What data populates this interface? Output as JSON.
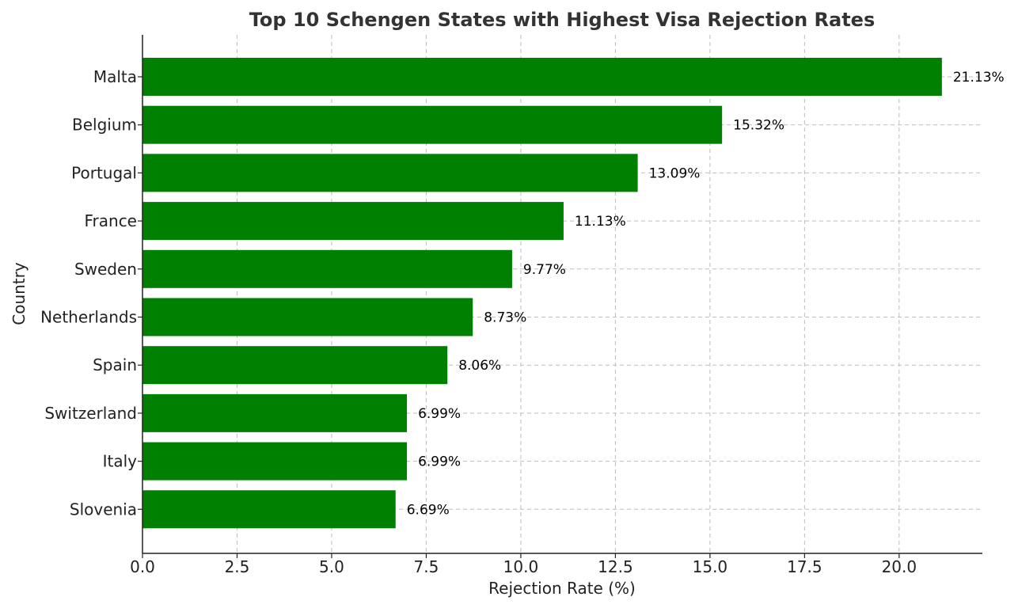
{
  "chart_data": {
    "type": "bar",
    "orientation": "horizontal",
    "title": "Top 10 Schengen States with Highest Visa Rejection Rates",
    "xlabel": "Rejection Rate (%)",
    "ylabel": "Country",
    "categories": [
      "Malta",
      "Belgium",
      "Portugal",
      "France",
      "Sweden",
      "Netherlands",
      "Spain",
      "Switzerland",
      "Italy",
      "Slovenia"
    ],
    "values": [
      21.13,
      15.32,
      13.09,
      11.13,
      9.77,
      8.73,
      8.06,
      6.99,
      6.99,
      6.69
    ],
    "data_labels": [
      "21.13%",
      "15.32%",
      "13.09%",
      "11.13%",
      "9.77%",
      "8.73%",
      "8.06%",
      "6.99%",
      "6.99%",
      "6.69%"
    ],
    "xticks": [
      0.0,
      2.5,
      5.0,
      7.5,
      10.0,
      12.5,
      15.0,
      17.5,
      20.0
    ],
    "xtick_labels": [
      "0.0",
      "2.5",
      "5.0",
      "7.5",
      "10.0",
      "12.5",
      "15.0",
      "17.5",
      "20.0"
    ],
    "xlim": [
      0,
      22.2
    ],
    "grid": true,
    "bar_color": "#008000"
  }
}
